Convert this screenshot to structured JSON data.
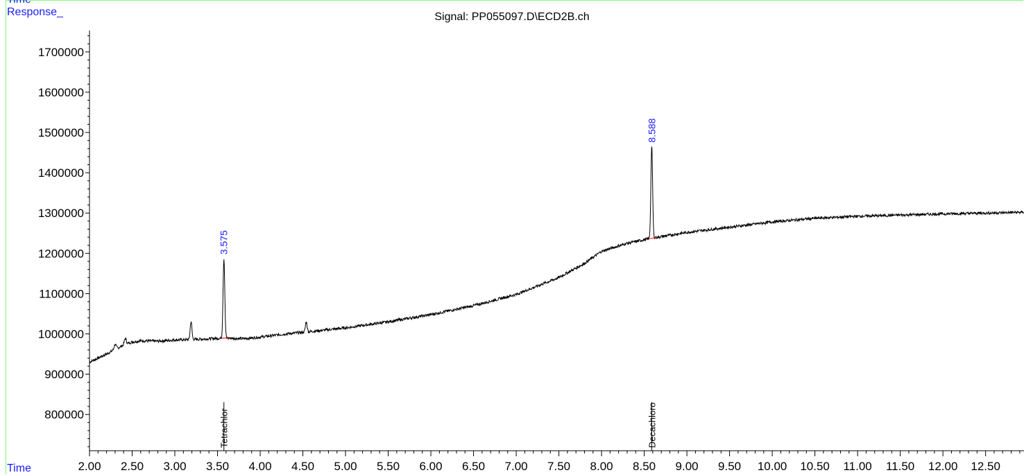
{
  "header": {
    "top_label": "Time",
    "response_label": "Response_",
    "time_label": "Time"
  },
  "chart_data": {
    "type": "line",
    "title": "Signal: PP055097.D\\ECD2B.ch",
    "xlabel": "Time",
    "ylabel": "Response_",
    "xlim": [
      2.0,
      12.95
    ],
    "ylim": [
      710000,
      1760000
    ],
    "x_ticks": [
      "2.00",
      "2.50",
      "3.00",
      "3.50",
      "4.00",
      "4.50",
      "5.00",
      "5.50",
      "6.00",
      "6.50",
      "7.00",
      "7.50",
      "8.00",
      "8.50",
      "9.00",
      "9.50",
      "10.00",
      "10.50",
      "11.00",
      "11.50",
      "12.00",
      "12.50"
    ],
    "y_ticks": [
      "800000",
      "900000",
      "1000000",
      "1100000",
      "1200000",
      "1300000",
      "1400000",
      "1500000",
      "1600000",
      "1700000"
    ],
    "baseline": [
      [
        2.0,
        930000
      ],
      [
        2.1,
        940000
      ],
      [
        2.2,
        950000
      ],
      [
        2.3,
        962000
      ],
      [
        2.4,
        972000
      ],
      [
        2.5,
        980000
      ],
      [
        2.6,
        983000
      ],
      [
        2.8,
        982000
      ],
      [
        3.0,
        985000
      ],
      [
        3.2,
        986000
      ],
      [
        3.4,
        988000
      ],
      [
        3.6,
        990000
      ],
      [
        3.8,
        988000
      ],
      [
        4.0,
        992000
      ],
      [
        4.3,
        1000000
      ],
      [
        4.6,
        1006000
      ],
      [
        5.0,
        1015000
      ],
      [
        5.5,
        1030000
      ],
      [
        6.0,
        1048000
      ],
      [
        6.5,
        1070000
      ],
      [
        7.0,
        1098000
      ],
      [
        7.5,
        1140000
      ],
      [
        7.8,
        1175000
      ],
      [
        8.0,
        1205000
      ],
      [
        8.3,
        1225000
      ],
      [
        8.6,
        1238000
      ],
      [
        9.0,
        1252000
      ],
      [
        9.5,
        1265000
      ],
      [
        10.0,
        1278000
      ],
      [
        10.5,
        1287000
      ],
      [
        11.0,
        1292000
      ],
      [
        11.5,
        1295000
      ],
      [
        12.0,
        1298000
      ],
      [
        12.5,
        1300000
      ],
      [
        12.95,
        1302000
      ]
    ],
    "peaks": [
      {
        "x": 2.3,
        "height": 12000,
        "width": 0.012
      },
      {
        "x": 2.42,
        "height": 15000,
        "width": 0.012
      },
      {
        "x": 3.19,
        "height": 45000,
        "width": 0.01
      },
      {
        "x": 3.575,
        "height": 198000,
        "width": 0.01
      },
      {
        "x": 4.54,
        "height": 25000,
        "width": 0.01
      },
      {
        "x": 8.588,
        "height": 228000,
        "width": 0.01
      }
    ],
    "peak_labels": [
      {
        "x": 3.575,
        "y": 1190000,
        "text": "3.575"
      },
      {
        "x": 8.588,
        "y": 1468000,
        "text": "8.588"
      }
    ],
    "compound_labels": [
      {
        "x": 3.575,
        "text": "Tetrachlor"
      },
      {
        "x": 8.588,
        "text": "Decachloro"
      }
    ],
    "colors": {
      "signal": "#000000",
      "peak_label": "#1a1aff",
      "frame": "#7CFC7C",
      "integration": "#ff0000"
    }
  }
}
